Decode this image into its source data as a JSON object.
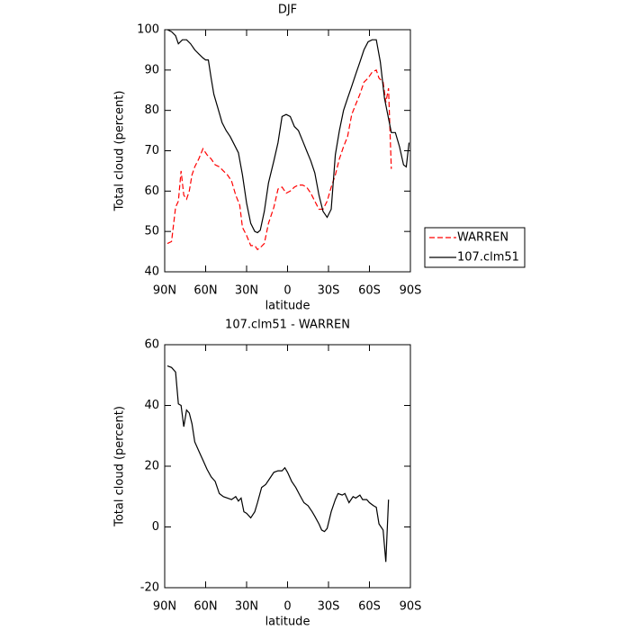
{
  "chart_data": [
    {
      "type": "line",
      "title": "DJF",
      "xlabel": "latitude",
      "ylabel": "Total cloud (percent)",
      "xlim": [
        90,
        -90
      ],
      "xticks": [
        {
          "value": 90,
          "label": "90N"
        },
        {
          "value": 60,
          "label": "60N"
        },
        {
          "value": 30,
          "label": "30N"
        },
        0,
        {
          "value": -30,
          "label": "30S"
        },
        {
          "value": -60,
          "label": "60S"
        },
        {
          "value": -90,
          "label": "90S"
        }
      ],
      "ylim": [
        40,
        100
      ],
      "yticks": [
        40,
        50,
        60,
        70,
        80,
        90,
        100
      ],
      "legend": "right",
      "series": [
        {
          "name": "WARREN",
          "color": "#ff0000",
          "linestyle": "dashed",
          "x": [
            88,
            85,
            82,
            80,
            78,
            76,
            74,
            72,
            70,
            68,
            65,
            62,
            59,
            56,
            53,
            50,
            47,
            44,
            41,
            38,
            35,
            33,
            30,
            27,
            24,
            22,
            20,
            17,
            14,
            10,
            7,
            4,
            1,
            -2,
            -5,
            -8,
            -11,
            -14,
            -17,
            -20,
            -23,
            -26,
            -29,
            -32,
            -35,
            -38,
            -41,
            -44,
            -47,
            -50,
            -53,
            -56,
            -59,
            -62,
            -65,
            -67,
            -70,
            -72,
            -74,
            -76
          ],
          "values": [
            47,
            47.5,
            56,
            57.5,
            65,
            59,
            58,
            60,
            64,
            66,
            68,
            70.5,
            69,
            68,
            66.5,
            66,
            65,
            64,
            62.5,
            59,
            56.5,
            51,
            49,
            46.5,
            46.5,
            45.5,
            46,
            47,
            52,
            56,
            60.5,
            61,
            59.5,
            60,
            61,
            61.5,
            61.5,
            61,
            59.5,
            57.5,
            55.5,
            55.5,
            57.5,
            61,
            64,
            68,
            71,
            73.5,
            79,
            81.5,
            84,
            87,
            88,
            89.5,
            90,
            88,
            87,
            82,
            85.5,
            65.5
          ]
        },
        {
          "name": "107.clm51",
          "color": "#000000",
          "linestyle": "solid",
          "x": [
            88,
            85,
            82,
            80,
            77,
            74,
            71,
            68,
            65,
            62,
            60,
            58,
            56,
            54,
            51,
            48,
            45,
            42,
            39,
            36,
            33,
            30,
            27,
            24,
            22,
            20,
            17,
            14,
            10,
            7,
            4,
            1,
            -2,
            -5,
            -8,
            -11,
            -14,
            -17,
            -20,
            -23,
            -26,
            -29,
            -32,
            -35,
            -38,
            -41,
            -44,
            -47,
            -50,
            -53,
            -56,
            -59,
            -62,
            -65,
            -68,
            -71,
            -74,
            -76,
            -79,
            -82,
            -85,
            -87,
            -89
          ],
          "values": [
            100,
            99.5,
            98.5,
            96.5,
            97.5,
            97.5,
            96.5,
            95,
            94,
            93,
            92.5,
            92.5,
            88,
            84,
            80.5,
            77,
            75,
            73.5,
            71.5,
            69.5,
            64,
            57,
            52,
            50,
            49.7,
            50.3,
            55,
            62,
            67.5,
            72,
            78.5,
            79,
            78.5,
            76,
            75,
            72.5,
            70,
            67.5,
            64.5,
            59,
            55,
            53.5,
            55.5,
            69,
            75,
            80,
            83,
            86,
            89,
            92,
            95,
            97,
            97.5,
            97.5,
            92,
            83,
            78,
            74.5,
            74.5,
            71,
            66.5,
            66,
            72
          ]
        }
      ]
    },
    {
      "type": "line",
      "title": "107.clm51 - WARREN",
      "xlabel": "latitude",
      "ylabel": "Total cloud (percent)",
      "xlim": [
        90,
        -90
      ],
      "xticks": [
        {
          "value": 90,
          "label": "90N"
        },
        {
          "value": 60,
          "label": "60N"
        },
        {
          "value": 30,
          "label": "30N"
        },
        0,
        {
          "value": -30,
          "label": "30S"
        },
        {
          "value": -60,
          "label": "60S"
        },
        {
          "value": -90,
          "label": "90S"
        }
      ],
      "ylim": [
        -20,
        60
      ],
      "yticks": [
        -20,
        0,
        20,
        40,
        60
      ],
      "series": [
        {
          "color": "#000000",
          "linestyle": "solid",
          "x": [
            88,
            85,
            82,
            80,
            78,
            76,
            74,
            72,
            70,
            68,
            65,
            62,
            59,
            56,
            53,
            50,
            47,
            44,
            41,
            38,
            36,
            34,
            32,
            30,
            27,
            24,
            22,
            19,
            16,
            13,
            10,
            7,
            4,
            2,
            0,
            -3,
            -6,
            -9,
            -12,
            -15,
            -18,
            -20,
            -23,
            -25,
            -27,
            -29,
            -32,
            -35,
            -37,
            -40,
            -42,
            -45,
            -48,
            -50,
            -53,
            -55,
            -58,
            -60,
            -63,
            -65,
            -67,
            -70,
            -72,
            -74
          ],
          "values": [
            53,
            52.5,
            51,
            40.5,
            40,
            33,
            38.5,
            37.5,
            34,
            28,
            25,
            22,
            19,
            16.5,
            15,
            11,
            10,
            9.5,
            9,
            10,
            8.5,
            9.5,
            5,
            4.5,
            3,
            5,
            8,
            13,
            14,
            16,
            18,
            18.5,
            18.5,
            19.5,
            18,
            15,
            13,
            10.5,
            8,
            7,
            5,
            3.5,
            1,
            -1,
            -1.5,
            -0.5,
            5,
            9,
            11,
            10.5,
            11,
            8,
            10,
            9.5,
            10.5,
            9,
            9,
            8,
            7,
            6.5,
            1,
            -1,
            -11.5,
            9
          ]
        }
      ]
    }
  ]
}
